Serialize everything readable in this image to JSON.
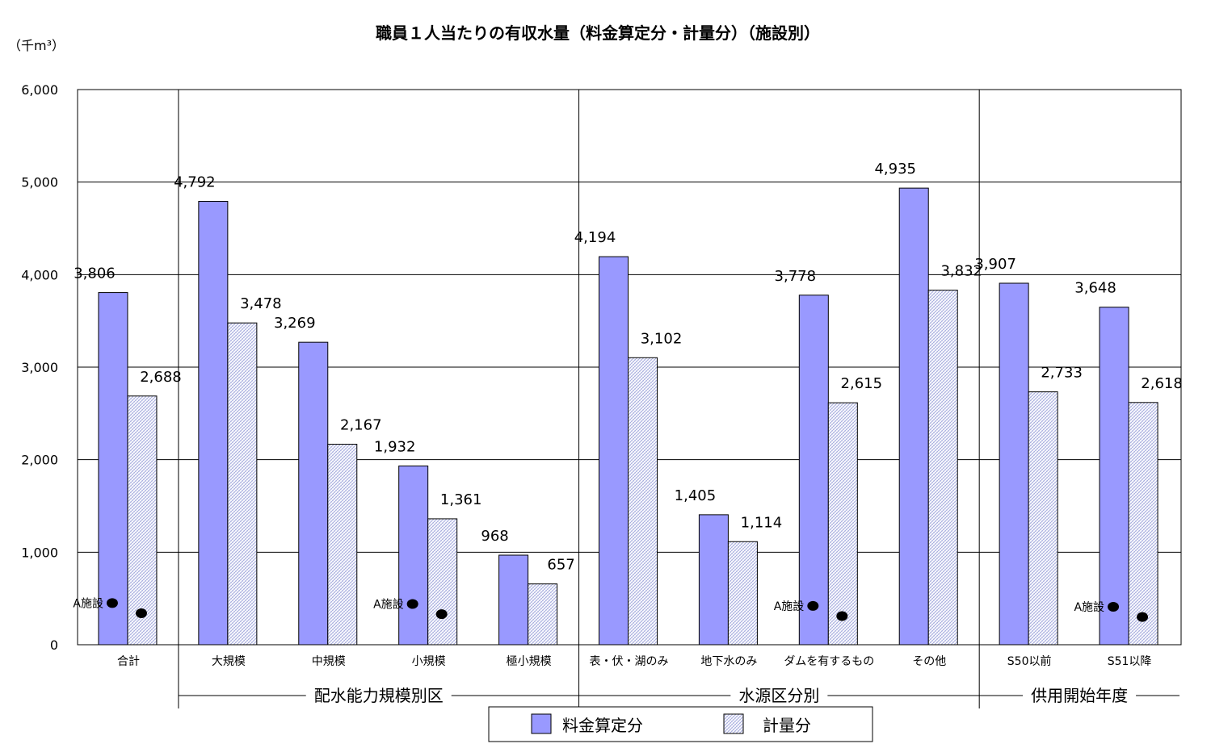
{
  "chart_data": {
    "type": "bar",
    "title": "職員１人当たりの有収水量（料金算定分・計量分）（施設別）",
    "unit_label": "（千m³）",
    "ylim": [
      0,
      6000
    ],
    "yticks": [
      "0",
      "1,000",
      "2,000",
      "3,000",
      "4,000",
      "5,000",
      "6,000"
    ],
    "grid": true,
    "categories": [
      "合計",
      "大規模",
      "中規模",
      "小規模",
      "極小規模",
      "表・伏・湖のみ",
      "地下水のみ",
      "ダムを有するもの",
      "その他",
      "S50以前",
      "S51以降"
    ],
    "series": [
      {
        "name": "料金算定分",
        "color": "#9999ff",
        "values": [
          3806,
          4792,
          3269,
          1932,
          968,
          4194,
          1405,
          3778,
          4935,
          3907,
          3648
        ],
        "labels": [
          "3,806",
          "4,792",
          "3,269",
          "1,932",
          "968",
          "4,194",
          "1,405",
          "3,778",
          "4,935",
          "3,907",
          "3,648"
        ]
      },
      {
        "name": "計量分",
        "color": "#e8e8f8",
        "values": [
          2688,
          3478,
          2167,
          1361,
          657,
          3102,
          1114,
          2615,
          3832,
          2733,
          2618
        ],
        "labels": [
          "2,688",
          "3,478",
          "2,167",
          "1,361",
          "657",
          "3,102",
          "1,114",
          "2,615",
          "3,832",
          "2,733",
          "2,618"
        ]
      }
    ],
    "groups": [
      {
        "label": "配水能力規模別区",
        "categories": [
          "大規模",
          "中規模",
          "小規模",
          "極小規模"
        ]
      },
      {
        "label": "水源区分別",
        "categories": [
          "表・伏・湖のみ",
          "地下水のみ",
          "ダムを有するもの",
          "その他"
        ]
      },
      {
        "label": "供用開始年度",
        "categories": [
          "S50以前",
          "S51以降"
        ]
      }
    ],
    "facility_points": {
      "label": "A施設",
      "labeled_categories": [
        "合計",
        "小規模",
        "ダムを有するもの",
        "S51以降"
      ],
      "points": [
        {
          "category": "合計",
          "料金算定分": 450,
          "計量分": 340
        },
        {
          "category": "小規模",
          "料金算定分": 440,
          "計量分": 330
        },
        {
          "category": "ダムを有するもの",
          "料金算定分": 420,
          "計量分": 310
        },
        {
          "category": "S51以降",
          "料金算定分": 410,
          "計量分": 300
        }
      ]
    },
    "legend_position": "bottom-center"
  }
}
